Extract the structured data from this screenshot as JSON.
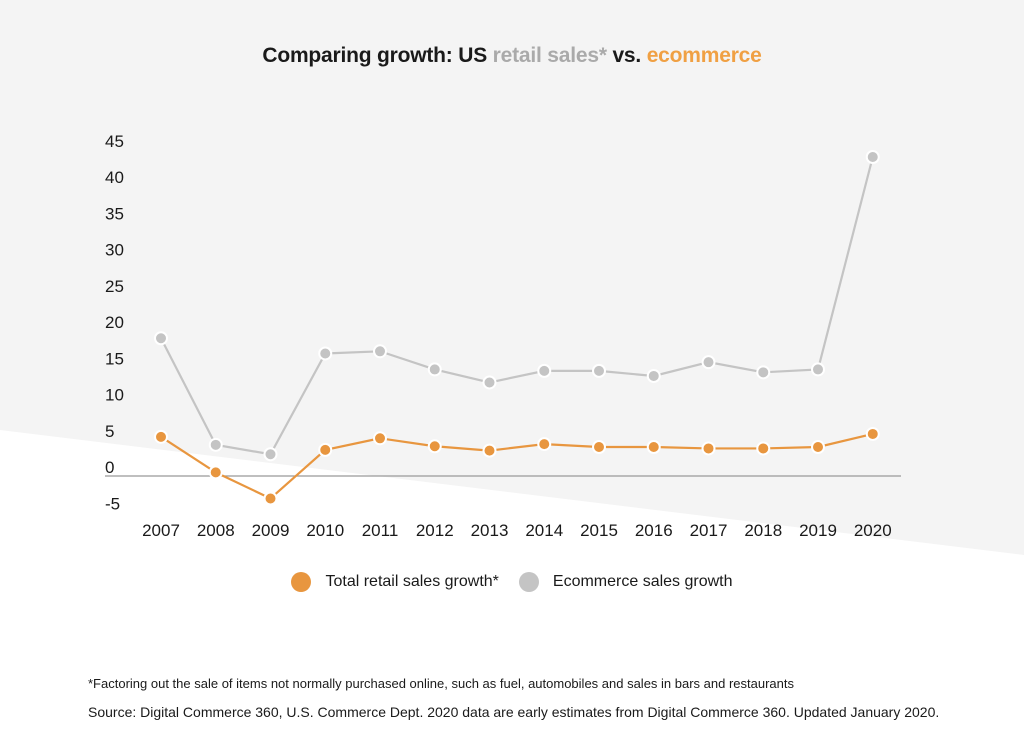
{
  "title": {
    "prefix": "Comparing growth: US ",
    "retail": "retail sales*",
    "mid": " vs. ",
    "ecom": "ecommerce"
  },
  "colors": {
    "retail": "#e8963f",
    "ecommerce": "#c4c4c4",
    "background_shape": "#f4f4f4",
    "axis": "#999999"
  },
  "legend": {
    "retail_label": "Total retail sales growth*",
    "ecommerce_label": "Ecommerce sales growth"
  },
  "footnote": "*Factoring out the sale of items not normally purchased online, such as fuel, automobiles and sales in bars and restaurants",
  "source": "Source: Digital Commerce 360, U.S. Commerce Dept. 2020 data are early estimates from Digital Commerce 360. Updated January 2020.",
  "chart_data": {
    "type": "line",
    "categories": [
      "2007",
      "2008",
      "2009",
      "2010",
      "2011",
      "2012",
      "2013",
      "2014",
      "2015",
      "2016",
      "2017",
      "2018",
      "2019",
      "2020"
    ],
    "series": [
      {
        "name": "Total retail sales growth*",
        "color": "#e8963f",
        "values": [
          5.4,
          0.5,
          -3.1,
          3.6,
          5.2,
          4.1,
          3.5,
          4.4,
          4.0,
          4.0,
          3.8,
          3.8,
          4.0,
          5.8
        ]
      },
      {
        "name": "Ecommerce sales growth",
        "color": "#c4c4c4",
        "values": [
          19.0,
          4.3,
          3.0,
          16.9,
          17.2,
          14.7,
          12.9,
          14.5,
          14.5,
          13.8,
          15.7,
          14.3,
          14.7,
          44.0
        ]
      }
    ],
    "yticks": [
      "45",
      "40",
      "35",
      "30",
      "25",
      "20",
      "15",
      "10",
      "5",
      "0",
      "-5"
    ],
    "ylim": [
      -5,
      45
    ],
    "xlabel": "",
    "ylabel": "",
    "grid": false,
    "legend_position": "bottom"
  }
}
